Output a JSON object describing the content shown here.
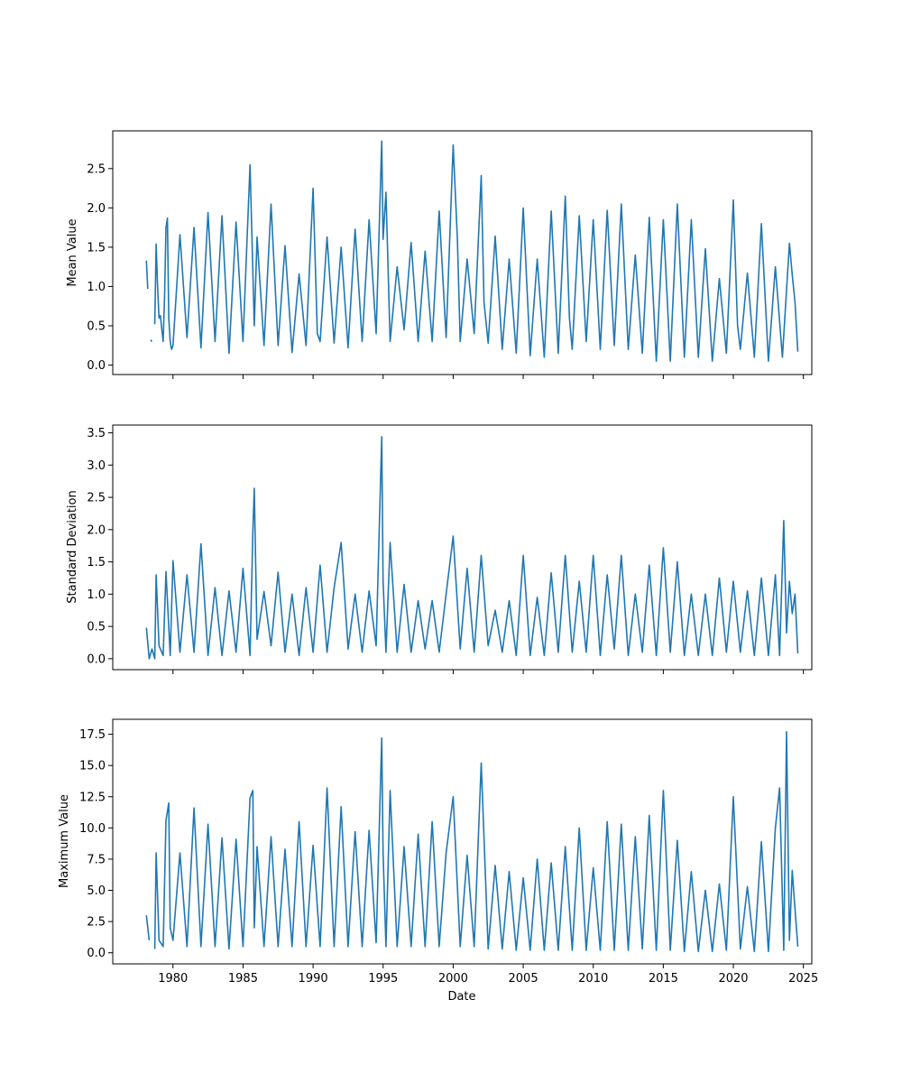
{
  "chart_data": [
    {
      "type": "line",
      "title": "",
      "xlabel": "",
      "ylabel": "Mean Value",
      "xlim": [
        1975.7,
        2025.6
      ],
      "ylim": [
        -0.12,
        2.98
      ],
      "yticks": [
        0.0,
        0.5,
        1.0,
        1.5,
        2.0,
        2.5
      ],
      "ytick_labels": [
        "0.0",
        "0.5",
        "1.0",
        "1.5",
        "2.0",
        "2.5"
      ],
      "xticks": [
        1980,
        1985,
        1990,
        1995,
        2000,
        2005,
        2010,
        2015,
        2020,
        2025
      ],
      "xtick_labels": [
        "",
        "",
        "",
        "",
        "",
        "",
        "",
        "",
        "",
        ""
      ],
      "color": "#1f77b4",
      "series": [
        {
          "x": [
            1978.1,
            1978.2,
            1978.3,
            1978.4,
            1978.5,
            1978.6,
            1978.7,
            1978.8,
            1978.9,
            1979.0,
            1979.1,
            1979.2,
            1979.3,
            1979.4,
            1979.5,
            1979.6,
            1979.7,
            1979.8,
            1979.9,
            1980.0,
            1980.5,
            1981.0,
            1981.5,
            1982.0,
            1982.5,
            1983.0,
            1983.5,
            1984.0,
            1984.5,
            1985.0,
            1985.5,
            1985.8,
            1986.0,
            1986.5,
            1987.0,
            1987.5,
            1988.0,
            1988.5,
            1989.0,
            1989.5,
            1990.0,
            1990.3,
            1990.5,
            1991.0,
            1991.5,
            1992.0,
            1992.5,
            1993.0,
            1993.5,
            1994.0,
            1994.5,
            1994.9,
            1995.0,
            1995.2,
            1995.5,
            1996.0,
            1996.5,
            1997.0,
            1997.5,
            1998.0,
            1998.5,
            1999.0,
            1999.5,
            2000.0,
            2000.3,
            2000.5,
            2001.0,
            2001.5,
            2002.0,
            2002.2,
            2002.5,
            2003.0,
            2003.5,
            2004.0,
            2004.5,
            2005.0,
            2005.5,
            2006.0,
            2006.5,
            2007.0,
            2007.5,
            2008.0,
            2008.3,
            2008.5,
            2009.0,
            2009.5,
            2010.0,
            2010.5,
            2011.0,
            2011.5,
            2012.0,
            2012.5,
            2013.0,
            2013.5,
            2014.0,
            2014.5,
            2015.0,
            2015.5,
            2016.0,
            2016.5,
            2017.0,
            2017.5,
            2018.0,
            2018.5,
            2019.0,
            2019.5,
            2020.0,
            2020.3,
            2020.5,
            2021.0,
            2021.5,
            2022.0,
            2022.5,
            2023.0,
            2023.5,
            2024.0,
            2024.2,
            2024.4,
            2024.6
          ],
          "y": [
            1.33,
            0.97,
            null,
            0.32,
            0.3,
            null,
            0.52,
            1.54,
            1.0,
            0.6,
            0.63,
            0.45,
            0.3,
            0.9,
            1.75,
            1.87,
            0.6,
            0.3,
            0.2,
            0.25,
            1.66,
            0.35,
            1.75,
            0.22,
            1.94,
            0.3,
            1.9,
            0.15,
            1.82,
            0.3,
            2.55,
            0.5,
            1.63,
            0.25,
            2.05,
            0.25,
            1.52,
            0.16,
            1.16,
            0.25,
            2.25,
            0.4,
            0.3,
            1.63,
            0.28,
            1.5,
            0.22,
            1.73,
            0.3,
            1.85,
            0.4,
            2.85,
            1.6,
            2.2,
            0.3,
            1.25,
            0.45,
            1.56,
            0.3,
            1.45,
            0.3,
            1.96,
            0.35,
            2.8,
            1.6,
            0.3,
            1.35,
            0.4,
            2.41,
            0.8,
            0.28,
            1.64,
            0.2,
            1.35,
            0.15,
            2.0,
            0.12,
            1.35,
            0.1,
            1.96,
            0.15,
            2.15,
            0.6,
            0.2,
            1.9,
            0.3,
            1.85,
            0.2,
            1.97,
            0.25,
            2.05,
            0.2,
            1.4,
            0.15,
            1.88,
            0.05,
            1.85,
            0.05,
            2.05,
            0.1,
            1.85,
            0.1,
            1.48,
            0.05,
            1.1,
            0.15,
            2.1,
            0.5,
            0.2,
            1.17,
            0.1,
            1.8,
            0.05,
            1.25,
            0.1,
            1.55,
            1.15,
            0.8,
            0.17
          ]
        }
      ]
    },
    {
      "type": "line",
      "title": "",
      "xlabel": "",
      "ylabel": "Standard Deviation",
      "xlim": [
        1975.7,
        2025.6
      ],
      "ylim": [
        -0.17,
        3.62
      ],
      "yticks": [
        0.0,
        0.5,
        1.0,
        1.5,
        2.0,
        2.5,
        3.0,
        3.5
      ],
      "ytick_labels": [
        "0.0",
        "0.5",
        "1.0",
        "1.5",
        "2.0",
        "2.5",
        "3.0",
        "3.5"
      ],
      "xticks": [
        1980,
        1985,
        1990,
        1995,
        2000,
        2005,
        2010,
        2015,
        2020,
        2025
      ],
      "xtick_labels": [
        "",
        "",
        "",
        "",
        "",
        "",
        "",
        "",
        "",
        ""
      ],
      "color": "#1f77b4",
      "series": [
        {
          "x": [
            1978.1,
            1978.3,
            1978.5,
            1978.7,
            1978.8,
            1979.0,
            1979.3,
            1979.5,
            1979.8,
            1980.0,
            1980.5,
            1981.0,
            1981.5,
            1982.0,
            1982.5,
            1983.0,
            1983.5,
            1984.0,
            1984.5,
            1985.0,
            1985.5,
            1985.7,
            1985.8,
            1986.0,
            1986.5,
            1987.0,
            1987.5,
            1988.0,
            1988.5,
            1989.0,
            1989.5,
            1990.0,
            1990.5,
            1991.0,
            1991.5,
            1992.0,
            1992.5,
            1993.0,
            1993.5,
            1994.0,
            1994.5,
            1994.9,
            1995.0,
            1995.2,
            1995.5,
            1996.0,
            1996.5,
            1997.0,
            1997.5,
            1998.0,
            1998.5,
            1999.0,
            1999.5,
            2000.0,
            2000.5,
            2001.0,
            2001.5,
            2002.0,
            2002.5,
            2003.0,
            2003.5,
            2004.0,
            2004.5,
            2005.0,
            2005.5,
            2006.0,
            2006.5,
            2007.0,
            2007.5,
            2008.0,
            2008.5,
            2009.0,
            2009.5,
            2010.0,
            2010.5,
            2011.0,
            2011.5,
            2012.0,
            2012.5,
            2013.0,
            2013.5,
            2014.0,
            2014.5,
            2015.0,
            2015.5,
            2016.0,
            2016.5,
            2017.0,
            2017.5,
            2018.0,
            2018.5,
            2019.0,
            2019.5,
            2020.0,
            2020.5,
            2021.0,
            2021.5,
            2022.0,
            2022.5,
            2023.0,
            2023.3,
            2023.6,
            2023.8,
            2024.0,
            2024.2,
            2024.4,
            2024.6
          ],
          "y": [
            0.48,
            0.0,
            0.15,
            0.0,
            1.3,
            0.2,
            0.05,
            1.35,
            0.05,
            1.52,
            0.1,
            1.3,
            0.1,
            1.78,
            0.05,
            1.1,
            0.05,
            1.05,
            0.1,
            1.4,
            0.05,
            1.96,
            2.64,
            0.3,
            1.04,
            0.2,
            1.34,
            0.1,
            1.0,
            0.05,
            1.1,
            0.1,
            1.45,
            0.1,
            1.1,
            1.8,
            0.15,
            1.0,
            0.1,
            1.05,
            0.2,
            3.44,
            1.2,
            0.1,
            1.8,
            0.1,
            1.15,
            0.1,
            0.9,
            0.15,
            0.9,
            0.1,
            1.0,
            1.9,
            0.15,
            1.4,
            0.1,
            1.6,
            0.2,
            0.75,
            0.1,
            0.9,
            0.05,
            1.6,
            0.05,
            0.95,
            0.05,
            1.33,
            0.1,
            1.6,
            0.1,
            1.2,
            0.1,
            1.6,
            0.05,
            1.3,
            0.15,
            1.6,
            0.05,
            1.0,
            0.1,
            1.45,
            0.05,
            1.72,
            0.1,
            1.5,
            0.05,
            1.0,
            0.05,
            1.0,
            0.05,
            1.25,
            0.1,
            1.2,
            0.1,
            1.05,
            0.05,
            1.25,
            0.05,
            1.3,
            0.05,
            2.14,
            0.4,
            1.2,
            0.7,
            1.0,
            0.08
          ]
        }
      ]
    },
    {
      "type": "line",
      "title": "",
      "xlabel": "Date",
      "ylabel": "Maximum Value",
      "xlim": [
        1975.7,
        2025.6
      ],
      "ylim": [
        -0.89,
        18.7
      ],
      "yticks": [
        0.0,
        2.5,
        5.0,
        7.5,
        10.0,
        12.5,
        15.0,
        17.5
      ],
      "ytick_labels": [
        "0.0",
        "2.5",
        "5.0",
        "7.5",
        "10.0",
        "12.5",
        "15.0",
        "17.5"
      ],
      "xticks": [
        1980,
        1985,
        1990,
        1995,
        2000,
        2005,
        2010,
        2015,
        2020,
        2025
      ],
      "xtick_labels": [
        "1980",
        "1985",
        "1990",
        "1995",
        "2000",
        "2005",
        "2010",
        "2015",
        "2020",
        "2025"
      ],
      "color": "#1f77b4",
      "series": [
        {
          "x": [
            1978.1,
            1978.3,
            1978.5,
            1978.7,
            1978.8,
            1979.0,
            1979.3,
            1979.5,
            1979.7,
            1979.8,
            1980.0,
            1980.5,
            1981.0,
            1981.5,
            1982.0,
            1982.5,
            1983.0,
            1983.5,
            1984.0,
            1984.5,
            1985.0,
            1985.5,
            1985.7,
            1985.8,
            1986.0,
            1986.5,
            1987.0,
            1987.5,
            1988.0,
            1988.5,
            1989.0,
            1989.5,
            1990.0,
            1990.5,
            1991.0,
            1991.5,
            1992.0,
            1992.5,
            1993.0,
            1993.5,
            1994.0,
            1994.5,
            1994.9,
            1995.0,
            1995.2,
            1995.5,
            1996.0,
            1996.5,
            1997.0,
            1997.5,
            1998.0,
            1998.5,
            1999.0,
            1999.5,
            2000.0,
            2000.5,
            2001.0,
            2001.5,
            2002.0,
            2002.5,
            2003.0,
            2003.5,
            2004.0,
            2004.5,
            2005.0,
            2005.5,
            2006.0,
            2006.5,
            2007.0,
            2007.5,
            2008.0,
            2008.5,
            2009.0,
            2009.5,
            2010.0,
            2010.5,
            2011.0,
            2011.5,
            2012.0,
            2012.5,
            2013.0,
            2013.5,
            2014.0,
            2014.5,
            2015.0,
            2015.5,
            2016.0,
            2016.5,
            2017.0,
            2017.5,
            2018.0,
            2018.5,
            2019.0,
            2019.5,
            2020.0,
            2020.5,
            2021.0,
            2021.5,
            2022.0,
            2022.5,
            2023.0,
            2023.3,
            2023.6,
            2023.8,
            2024.0,
            2024.2,
            2024.4,
            2024.6
          ],
          "y": [
            3.0,
            1.0,
            null,
            0.3,
            8.0,
            1.0,
            0.5,
            10.6,
            12.0,
            2.0,
            1.0,
            8.0,
            0.5,
            11.6,
            0.5,
            10.3,
            0.5,
            9.2,
            0.3,
            9.1,
            0.5,
            12.4,
            13.0,
            2.0,
            8.5,
            0.5,
            9.3,
            0.5,
            8.3,
            0.5,
            10.5,
            0.5,
            8.6,
            0.5,
            13.2,
            0.5,
            11.7,
            0.5,
            9.7,
            0.5,
            9.8,
            0.8,
            17.2,
            8.0,
            0.5,
            13.0,
            0.5,
            8.5,
            0.5,
            9.5,
            0.5,
            10.5,
            0.5,
            8.0,
            12.5,
            0.5,
            7.8,
            0.5,
            15.2,
            0.3,
            7.0,
            0.3,
            6.5,
            0.2,
            6.0,
            0.2,
            7.5,
            0.2,
            7.2,
            0.2,
            8.5,
            0.2,
            10.0,
            0.2,
            6.8,
            0.2,
            10.5,
            0.2,
            10.3,
            0.2,
            9.3,
            0.3,
            11.0,
            0.2,
            13.0,
            0.2,
            9.0,
            0.1,
            6.5,
            0.1,
            5.0,
            0.1,
            5.5,
            0.2,
            12.5,
            0.3,
            5.3,
            0.1,
            8.9,
            0.1,
            10.0,
            13.2,
            0.2,
            17.7,
            1.0,
            6.6,
            3.5,
            0.5
          ]
        }
      ]
    }
  ]
}
